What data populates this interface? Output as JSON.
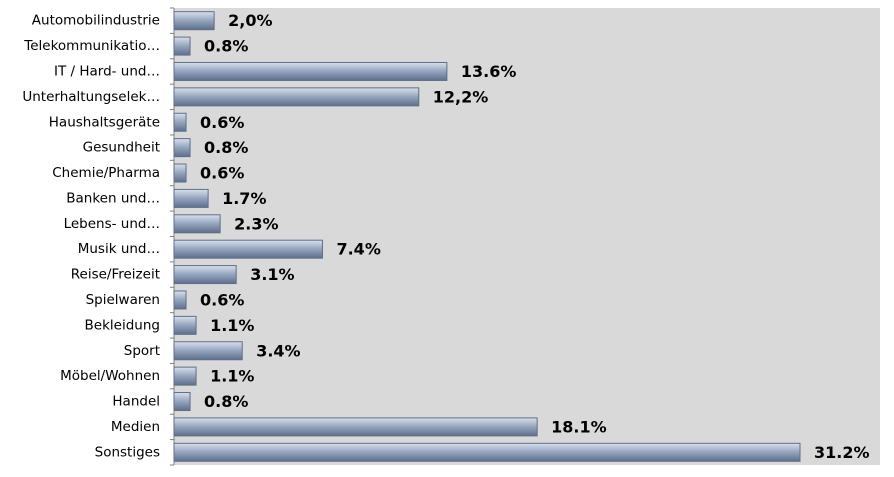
{
  "chart_data": {
    "type": "bar",
    "orientation": "horizontal",
    "categories": [
      "Automobilindustrie",
      "Telekommunikatio…",
      "IT / Hard- und…",
      "Unterhaltungselek…",
      "Haushaltsgeräte",
      "Gesundheit",
      "Chemie/Pharma",
      "Banken und…",
      "Lebens- und…",
      "Musik und…",
      "Reise/Freizeit",
      "Spielwaren",
      "Bekleidung",
      "Sport",
      "Möbel/Wohnen",
      "Handel",
      "Medien",
      "Sonstiges"
    ],
    "values": [
      2.0,
      0.8,
      13.6,
      12.2,
      0.6,
      0.8,
      0.6,
      1.7,
      2.3,
      7.4,
      3.1,
      0.6,
      1.1,
      3.4,
      1.1,
      0.8,
      18.1,
      31.2
    ],
    "value_labels": [
      "2,0%",
      "0.8%",
      "13.6%",
      "12,2%",
      "0.6%",
      "0.8%",
      "0.6%",
      "1.7%",
      "2.3%",
      "7.4%",
      "3.1%",
      "0.6%",
      "1.1%",
      "3.4%",
      "1.1%",
      "0.8%",
      "18.1%",
      "31.2%"
    ],
    "color": "#9aa9c2"
  }
}
